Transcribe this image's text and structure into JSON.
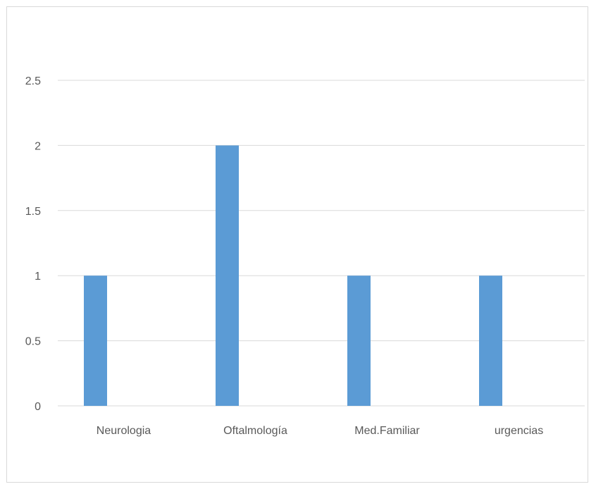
{
  "chart_data": {
    "type": "bar",
    "title": "",
    "xlabel": "",
    "ylabel": "",
    "categories": [
      "Neurologia",
      "Oftalmología",
      "Med.Familiar",
      "urgencias"
    ],
    "series": [
      {
        "values": [
          1,
          2,
          1,
          1
        ]
      }
    ],
    "ylim": [
      0,
      2.5
    ],
    "yticks": [
      "0",
      "0.5",
      "1",
      "1.5",
      "2",
      "2.5"
    ],
    "grid": true,
    "legend": "none",
    "colors": {
      "bar": "#5b9bd5",
      "grid": "#d9d9d9",
      "text": "#595959",
      "border": "#d9d9d9"
    }
  }
}
